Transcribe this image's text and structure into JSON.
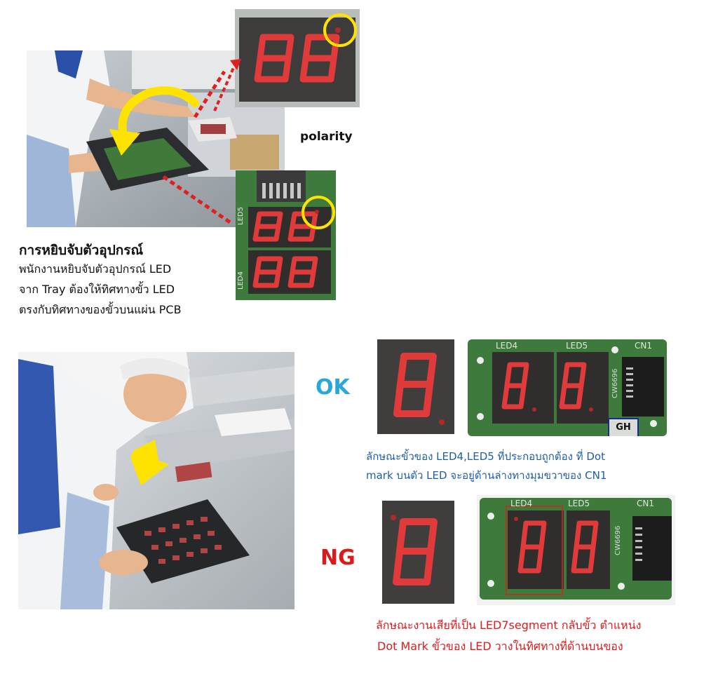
{
  "top_section": {
    "callout_label": "polarity",
    "title": "การหยิบจับตัวอุปกรณ์",
    "body_lines": [
      "พนักงานหยิบจับตัวอุปกรณ์  LED",
      "จาก Tray ต้องให้ทิศทางขั้ว  LED",
      "ตรงกับทิศทางของขั้วบนแผ่น PCB"
    ],
    "pcb_labels": [
      "LED5",
      "LED4"
    ]
  },
  "ok_section": {
    "status": "OK",
    "pcb_labels": [
      "LED4",
      "LED5",
      "CN1"
    ],
    "chip_code": "CW6696",
    "connector_tag": "GH",
    "caption_lines": [
      "ลักษณะขั้วของ  LED4,LED5  ที่ประกอบถูกต้อง  ที่ Dot",
      "mark บนตัว  LED  จะอยู่ด้านล่างทางมุมขวาของ   CN1"
    ]
  },
  "ng_section": {
    "status": "NG",
    "pcb_labels": [
      "LED4",
      "LED5",
      "CN1"
    ],
    "chip_code": "CW6696",
    "caption_lines": [
      "ลักษณะงานเสียที่เป็น  LED7segment  กลับขั้ว  ตำแหน่ง",
      "Dot Mark  ขั้วของ LED  วางในทิศทางที่ด้านบนของ"
    ]
  },
  "colors": {
    "ok_text": "#29a8d8",
    "ng_text": "#d91b1b",
    "blue_caption": "#1f5fa8",
    "red_caption": "#e01b1b",
    "highlight_yellow": "#ffe300",
    "arrow_red": "#e02020",
    "segment_red": "#e03a3a",
    "pcb_green": "#3d7a3c"
  }
}
